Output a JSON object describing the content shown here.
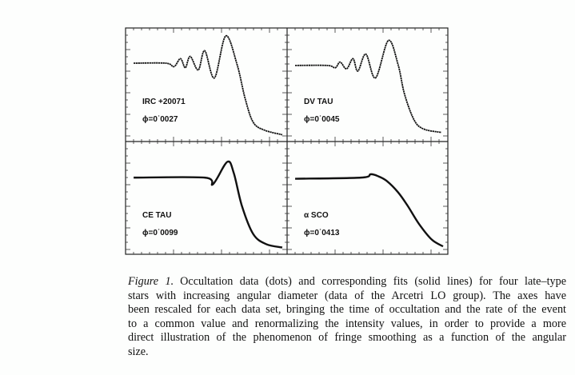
{
  "chart_data": {
    "type": "line",
    "layout": "2x2 panels",
    "xlabel": "",
    "ylabel": "",
    "xlim": [
      0,
      1
    ],
    "ylim": [
      0,
      1
    ],
    "panels": [
      {
        "name": "IRC +20071",
        "phi_label": "ϕ=0˙0027",
        "x": [
          0.05,
          0.25,
          0.3,
          0.34,
          0.37,
          0.4,
          0.45,
          0.49,
          0.55,
          0.62,
          0.69,
          0.74,
          0.79,
          0.86,
          0.97
        ],
        "y": [
          0.69,
          0.69,
          0.66,
          0.73,
          0.65,
          0.75,
          0.63,
          0.8,
          0.56,
          0.93,
          0.68,
          0.38,
          0.17,
          0.1,
          0.06
        ]
      },
      {
        "name": "DV TAU",
        "phi_label": "ϕ=0˙0045",
        "x": [
          0.05,
          0.25,
          0.3,
          0.33,
          0.37,
          0.41,
          0.44,
          0.49,
          0.55,
          0.63,
          0.69,
          0.73,
          0.79,
          0.85,
          0.96
        ],
        "y": [
          0.67,
          0.67,
          0.65,
          0.7,
          0.64,
          0.73,
          0.62,
          0.77,
          0.56,
          0.89,
          0.68,
          0.42,
          0.19,
          0.11,
          0.08
        ]
      },
      {
        "name": "CE TAU",
        "phi_label": "ϕ=0˙0099",
        "x": [
          0.05,
          0.49,
          0.54,
          0.63,
          0.67,
          0.72,
          0.79,
          0.87,
          0.97
        ],
        "y": [
          0.68,
          0.68,
          0.62,
          0.82,
          0.72,
          0.43,
          0.18,
          0.09,
          0.06
        ]
      },
      {
        "name": "α SCO",
        "phi_label": "ϕ=0˙0413",
        "x": [
          0.05,
          0.46,
          0.52,
          0.57,
          0.62,
          0.69,
          0.75,
          0.82,
          0.9,
          0.97
        ],
        "y": [
          0.67,
          0.68,
          0.71,
          0.69,
          0.65,
          0.55,
          0.43,
          0.27,
          0.13,
          0.07
        ]
      }
    ]
  },
  "caption": {
    "figure_label": "Figure 1.",
    "lines": [
      "Occultation data (dots) and corresponding fits (solid lines) for four late–type",
      "stars with increasing angular diameter (data of the Arcetri LO group). The axes have",
      "been rescaled for each data set, bringing the time of occultation and the rate of the event",
      "to a common value and renormalizing the intensity values, in order to provide a more",
      "direct illustration of the phenomenon of fringe smoothing as a function of the angular",
      "size."
    ]
  }
}
